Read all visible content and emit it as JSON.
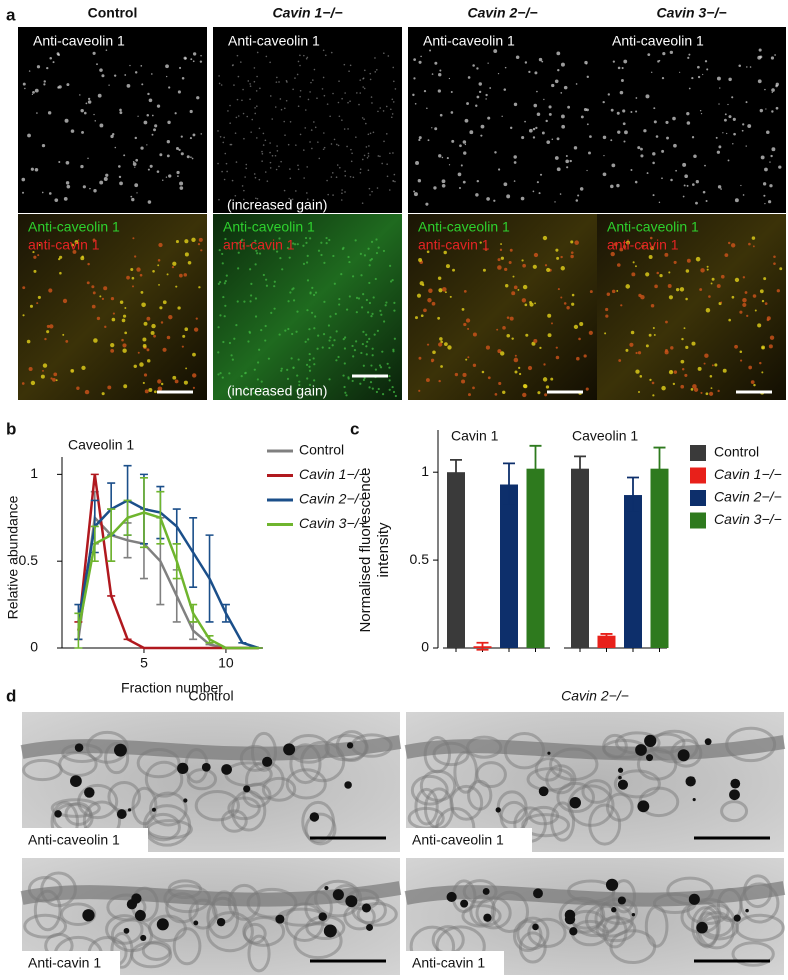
{
  "panels": {
    "a": {
      "letter": "a",
      "columns": [
        "Control",
        "Cavin 1−/−",
        "Cavin 2−/−",
        "Cavin 3−/−"
      ],
      "top_label": "Anti-caveolin 1",
      "merge_label_green": "Anti-caveolin 1",
      "merge_label_red": "anti-cavin 1",
      "gain_note": "(increased gain)"
    },
    "b": {
      "letter": "b"
    },
    "c": {
      "letter": "c"
    },
    "d": {
      "letter": "d",
      "columns": [
        "Control",
        "Cavin 2−/−"
      ],
      "top_label": "Anti-caveolin 1",
      "bottom_label": "Anti-cavin 1"
    }
  },
  "chart_data": [
    {
      "type": "line",
      "title": "Caveolin 1",
      "x_label": "Fraction number",
      "y_label": "Relative abundance",
      "x": [
        1,
        2,
        3,
        4,
        5,
        6,
        7,
        8,
        9,
        10,
        11,
        12
      ],
      "xlim": [
        0,
        12.2
      ],
      "xticks": [
        5,
        10
      ],
      "ylim": [
        0,
        1.1
      ],
      "yticks": [
        0,
        0.5,
        1
      ],
      "series": [
        {
          "name": "Control",
          "color": "#808080",
          "values": [
            0.05,
            0.75,
            0.65,
            0.62,
            0.6,
            0.5,
            0.3,
            0.1,
            0.02,
            0,
            0,
            0
          ],
          "errors": [
            0,
            0.15,
            0.15,
            0.1,
            0.2,
            0.25,
            0.15,
            0.05,
            0,
            0,
            0,
            0
          ]
        },
        {
          "name": "Cavin 1−/−",
          "color": "#b0181e",
          "values": [
            0.1,
            1.0,
            0.3,
            0.05,
            0,
            0,
            0,
            0,
            0,
            0,
            0,
            0
          ],
          "errors": [
            0.05,
            0,
            0,
            0,
            0,
            0,
            0,
            0,
            0,
            0,
            0,
            0
          ]
        },
        {
          "name": "Cavin 2−/−",
          "color": "#1b4f8a",
          "values": [
            0.15,
            0.7,
            0.8,
            0.85,
            0.8,
            0.78,
            0.7,
            0.55,
            0.4,
            0.2,
            0.03,
            0
          ],
          "errors": [
            0.1,
            0.15,
            0.15,
            0.2,
            0.2,
            0.15,
            0.1,
            0.2,
            0.25,
            0.05,
            0,
            0
          ]
        },
        {
          "name": "Cavin 3−/−",
          "color": "#6fb52e",
          "values": [
            0.1,
            0.6,
            0.65,
            0.75,
            0.78,
            0.75,
            0.5,
            0.2,
            0.05,
            0,
            0,
            0
          ],
          "errors": [
            0.1,
            0.1,
            0.15,
            0.1,
            0.2,
            0.15,
            0.1,
            0.05,
            0.02,
            0,
            0,
            0
          ]
        }
      ]
    },
    {
      "type": "bar",
      "y_label": "Normalised fluorescence intensity",
      "categories": [
        "Cavin 1",
        "Caveolin 1"
      ],
      "ylim": [
        0,
        1.24
      ],
      "yticks": [
        0,
        0.5,
        1
      ],
      "series": [
        {
          "name": "Control",
          "color": "#3a3a3a",
          "values": [
            1.0,
            1.02
          ],
          "errors": [
            0.07,
            0.07
          ]
        },
        {
          "name": "Cavin 1−/−",
          "color": "#e8201a",
          "values": [
            0.01,
            0.07
          ],
          "errors": [
            0.02,
            0.01
          ]
        },
        {
          "name": "Cavin 2−/−",
          "color": "#0d2f6b",
          "values": [
            0.93,
            0.87
          ],
          "errors": [
            0.12,
            0.1
          ]
        },
        {
          "name": "Cavin 3−/−",
          "color": "#2e7a1e",
          "values": [
            1.02,
            1.02
          ],
          "errors": [
            0.13,
            0.12
          ]
        }
      ]
    }
  ]
}
